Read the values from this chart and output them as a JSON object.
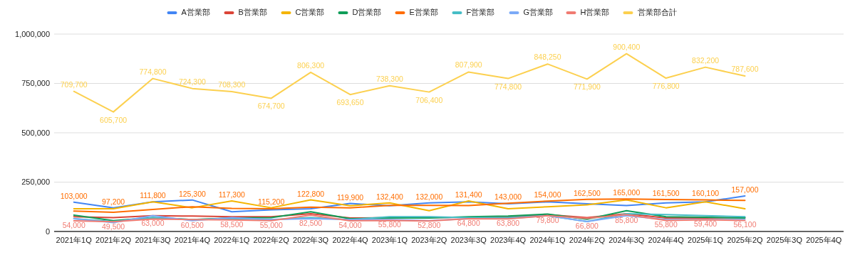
{
  "chart_data": {
    "type": "line",
    "categories": [
      "2021年1Q",
      "2021年2Q",
      "2021年3Q",
      "2021年4Q",
      "2022年1Q",
      "2022年2Q",
      "2022年3Q",
      "2022年4Q",
      "2023年1Q",
      "2023年2Q",
      "2023年3Q",
      "2023年4Q",
      "2024年1Q",
      "2024年2Q",
      "2024年3Q",
      "2024年4Q",
      "2025年1Q",
      "2025年2Q",
      "2025年3Q",
      "2025年4Q"
    ],
    "ylim": [
      0,
      1000000
    ],
    "yticks": [
      {
        "value": 0,
        "label": "0"
      },
      {
        "value": 250000,
        "label": "250,000"
      },
      {
        "value": 500000,
        "label": "500,000"
      },
      {
        "value": 750000,
        "label": "750,000"
      },
      {
        "value": 1000000,
        "label": "1,000,000"
      }
    ],
    "grid": "y",
    "legend": "top",
    "marker": "none",
    "series": [
      {
        "name": "A営業部",
        "color": "#4285f4",
        "values": [
          148500,
          120000,
          150000,
          159500,
          100000,
          110000,
          115000,
          141750,
          130000,
          145000,
          150000,
          140000,
          150000,
          140000,
          131400,
          145000,
          150000,
          179900,
          null,
          null
        ]
      },
      {
        "name": "B営業部",
        "color": "#db4437",
        "values": [
          75000,
          70000,
          80000,
          78000,
          75000,
          75000,
          90000,
          68000,
          70000,
          70000,
          72000,
          75000,
          85000,
          70000,
          90000,
          68000,
          68000,
          70000,
          null,
          null
        ]
      },
      {
        "name": "C営業部",
        "color": "#f4b400",
        "values": [
          115000,
          115000,
          150000,
          120000,
          155000,
          120000,
          160000,
          130000,
          145000,
          105000,
          155000,
          115000,
          125000,
          135000,
          160000,
          120000,
          150000,
          115000,
          null,
          null
        ]
      },
      {
        "name": "D営業部",
        "color": "#0f9d58",
        "values": [
          83000,
          55000,
          70000,
          60000,
          68000,
          70000,
          100000,
          65000,
          68000,
          68000,
          75000,
          78000,
          88000,
          62000,
          105000,
          75000,
          72000,
          68000,
          null,
          null
        ]
      },
      {
        "name": "E営業部",
        "color": "#ff6d01",
        "values": [
          103000,
          97200,
          111800,
          125300,
          117300,
          115200,
          122800,
          119900,
          132400,
          132000,
          131400,
          143000,
          154000,
          162500,
          165000,
          161500,
          160100,
          157000,
          null,
          null
        ],
        "value_labels": [
          "103,000",
          "97,200",
          "111,800",
          "125,300",
          "117,300",
          "115,200",
          "122,800",
          "119,900",
          "132,400",
          "132,000",
          "131,400",
          "143,000",
          "154,000",
          "162,500",
          "165,000",
          "161,500",
          "160,100",
          "157,000",
          null,
          null
        ]
      },
      {
        "name": "F営業部",
        "color": "#46bdc6",
        "values": [
          65000,
          50000,
          70000,
          60000,
          65000,
          60000,
          70000,
          60000,
          75000,
          75000,
          70000,
          70000,
          80000,
          50000,
          90000,
          85000,
          80000,
          75000,
          null,
          null
        ]
      },
      {
        "name": "G営業部",
        "color": "#7baaf7",
        "values": [
          65000,
          45000,
          80000,
          55000,
          70000,
          60000,
          65000,
          60000,
          60000,
          55000,
          65000,
          65000,
          80000,
          50000,
          80000,
          60000,
          60000,
          60000,
          null,
          null
        ]
      },
      {
        "name": "H営業部",
        "color": "#f07b72",
        "values": [
          54000,
          49500,
          63000,
          60500,
          58500,
          55000,
          82500,
          54000,
          55800,
          52800,
          64800,
          63800,
          79800,
          66800,
          85800,
          55800,
          59400,
          56100,
          null,
          null
        ],
        "value_labels": [
          "54,000",
          "49,500",
          "63,000",
          "60,500",
          "58,500",
          "55,000",
          "82,500",
          "54,000",
          "55,800",
          "52,800",
          "64,800",
          "63,800",
          "79,800",
          "66,800",
          "85,800",
          "55,800",
          "59,400",
          "56,100",
          null,
          null
        ]
      },
      {
        "name": "営業部合計",
        "color": "#fcd04f",
        "values": [
          709700,
          605700,
          774800,
          724300,
          708300,
          674700,
          806300,
          693650,
          738300,
          706400,
          807900,
          774800,
          848250,
          771900,
          900400,
          776800,
          832200,
          787600,
          null,
          null
        ],
        "value_labels": [
          "709,700",
          "605,700",
          "774,800",
          "724,300",
          "708,300",
          "674,700",
          "806,300",
          "693,650",
          "738,300",
          "706,400",
          "807,900",
          "774,800",
          "848,250",
          "771,900",
          "900,400",
          "776,800",
          "832,200",
          "787,600",
          null,
          null
        ]
      }
    ]
  }
}
